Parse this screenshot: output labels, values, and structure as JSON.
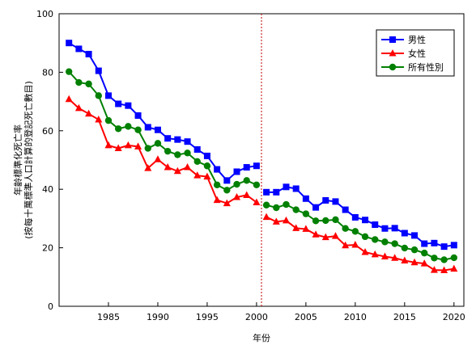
{
  "chart_data": {
    "type": "line",
    "xlabel": "年份",
    "ylabel_lines": [
      "年齡標準化死亡率",
      "(按每十萬標準人口計算的登記死亡數目)"
    ],
    "xlim": [
      1980,
      2021
    ],
    "ylim": [
      0,
      100
    ],
    "x_ticks": [
      1985,
      1990,
      1995,
      2000,
      2005,
      2010,
      2015,
      2020
    ],
    "y_ticks": [
      0,
      20,
      40,
      60,
      80,
      100
    ],
    "break_line_x": 2000.5,
    "legend_position": "top-right",
    "series": [
      {
        "name": "男性",
        "color": "#0000FF",
        "marker": "square",
        "segments": [
          {
            "x": [
              1981,
              1982,
              1983,
              1984,
              1985,
              1986,
              1987,
              1988,
              1989,
              1990,
              1991,
              1992,
              1993,
              1994,
              1995,
              1996,
              1997,
              1998,
              1999,
              2000
            ],
            "y": [
              90.0,
              88.0,
              86.2,
              80.5,
              72.0,
              69.2,
              68.6,
              65.2,
              61.2,
              60.3,
              57.4,
              57.0,
              56.3,
              53.6,
              51.4,
              46.8,
              43.0,
              46.0,
              47.5,
              48.0
            ]
          },
          {
            "x": [
              2001,
              2002,
              2003,
              2004,
              2005,
              2006,
              2007,
              2008,
              2009,
              2010,
              2011,
              2012,
              2013,
              2014,
              2015,
              2016,
              2017,
              2018,
              2019,
              2020
            ],
            "y": [
              39.0,
              39.0,
              40.8,
              40.2,
              36.8,
              33.8,
              36.2,
              35.8,
              33.0,
              30.4,
              29.5,
              27.9,
              26.6,
              26.7,
              25.0,
              24.2,
              21.4,
              21.6,
              20.4,
              20.9
            ]
          }
        ]
      },
      {
        "name": "女性",
        "color": "#FF0000",
        "marker": "triangle",
        "segments": [
          {
            "x": [
              1981,
              1982,
              1983,
              1984,
              1985,
              1986,
              1987,
              1988,
              1989,
              1990,
              1991,
              1992,
              1993,
              1994,
              1995,
              1996,
              1997,
              1998,
              1999,
              2000
            ],
            "y": [
              70.8,
              67.7,
              65.8,
              63.8,
              55.0,
              54.0,
              55.0,
              54.6,
              47.2,
              50.2,
              47.5,
              46.2,
              47.5,
              44.7,
              44.3,
              36.3,
              35.2,
              37.3,
              38.0,
              35.5
            ]
          },
          {
            "x": [
              2001,
              2002,
              2003,
              2004,
              2005,
              2006,
              2007,
              2008,
              2009,
              2010,
              2011,
              2012,
              2013,
              2014,
              2015,
              2016,
              2017,
              2018,
              2019,
              2020
            ],
            "y": [
              30.5,
              28.9,
              29.3,
              26.7,
              26.4,
              24.5,
              23.6,
              24.0,
              20.8,
              21.0,
              18.5,
              17.7,
              17.0,
              16.5,
              15.6,
              15.0,
              14.6,
              12.4,
              12.3,
              12.8
            ]
          }
        ]
      },
      {
        "name": "所有性別",
        "color": "#008000",
        "marker": "circle",
        "segments": [
          {
            "x": [
              1981,
              1982,
              1983,
              1984,
              1985,
              1986,
              1987,
              1988,
              1989,
              1990,
              1991,
              1992,
              1993,
              1994,
              1995,
              1996,
              1997,
              1998,
              1999,
              2000
            ],
            "y": [
              80.2,
              76.5,
              76.0,
              72.0,
              63.5,
              60.7,
              61.5,
              60.3,
              54.0,
              55.7,
              53.0,
              51.8,
              52.4,
              49.5,
              48.0,
              41.5,
              39.7,
              41.7,
              43.0,
              41.5
            ]
          },
          {
            "x": [
              2001,
              2002,
              2003,
              2004,
              2005,
              2006,
              2007,
              2008,
              2009,
              2010,
              2011,
              2012,
              2013,
              2014,
              2015,
              2016,
              2017,
              2018,
              2019,
              2020
            ],
            "y": [
              34.6,
              33.7,
              34.8,
              33.0,
              31.6,
              29.2,
              29.3,
              29.6,
              26.6,
              25.6,
              23.8,
              22.8,
              22.0,
              21.4,
              19.9,
              19.3,
              18.2,
              16.5,
              15.9,
              16.6
            ]
          }
        ]
      }
    ]
  }
}
